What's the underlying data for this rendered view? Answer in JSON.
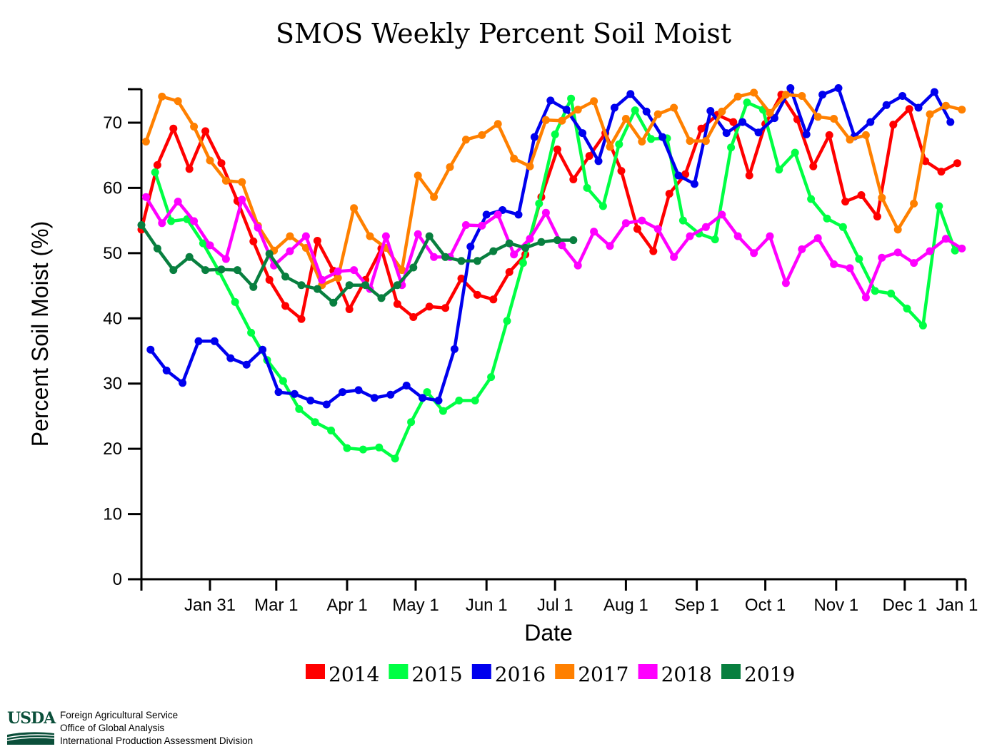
{
  "chart_data": {
    "type": "line",
    "title": "SMOS Weekly Percent Soil Moist",
    "xlabel": "Date",
    "ylabel": "Percent Soil Moist (%)",
    "xlim": [
      1,
      366
    ],
    "ylim": [
      0,
      75
    ],
    "y_ticks": [
      0,
      10,
      20,
      30,
      40,
      50,
      60,
      70
    ],
    "x_ticks": [
      {
        "day": 31,
        "label": "Jan 31"
      },
      {
        "day": 60,
        "label": "Mar 1"
      },
      {
        "day": 91,
        "label": "Apr 1"
      },
      {
        "day": 121,
        "label": "May 1"
      },
      {
        "day": 152,
        "label": "Jun 1"
      },
      {
        "day": 182,
        "label": "Jul 1"
      },
      {
        "day": 213,
        "label": "Aug 1"
      },
      {
        "day": 244,
        "label": "Sep 1"
      },
      {
        "day": 274,
        "label": "Oct 1"
      },
      {
        "day": 305,
        "label": "Nov 1"
      },
      {
        "day": 335,
        "label": "Dec 1"
      },
      {
        "day": 366,
        "label": "Jan 1"
      }
    ],
    "legend_position": "bottom",
    "series": [
      {
        "name": "2014",
        "color": "#ff0000",
        "start_day": 1,
        "values": [
          53.6,
          63.5,
          69.1,
          62.9,
          68.7,
          63.8,
          58.0,
          51.8,
          45.9,
          41.9,
          39.9,
          51.9,
          47.3,
          41.4,
          45.9,
          50.7,
          42.2,
          40.2,
          41.8,
          41.6,
          46.1,
          43.6,
          42.9,
          47.1,
          49.8,
          58.6,
          65.9,
          61.3,
          64.9,
          68.4,
          62.6,
          53.7,
          50.3,
          59.1,
          62.1,
          69.1,
          71.2,
          70.1,
          61.9,
          69.8,
          74.3,
          70.5,
          63.3,
          68.1,
          57.9,
          58.9,
          55.6,
          69.7,
          72.1,
          64.1,
          62.5,
          63.8
        ]
      },
      {
        "name": "2015",
        "color": "#00ff44",
        "start_day": 7,
        "values": [
          62.4,
          54.9,
          55.2,
          51.5,
          47.2,
          42.5,
          37.8,
          33.6,
          30.4,
          26.1,
          24.1,
          22.8,
          20.1,
          19.9,
          20.2,
          18.5,
          24.1,
          28.7,
          25.8,
          27.4,
          27.4,
          31.0,
          39.6,
          48.5,
          57.6,
          68.2,
          73.7,
          60.0,
          57.2,
          66.7,
          71.9,
          67.5,
          67.6,
          55.0,
          53.0,
          52.1,
          66.2,
          73.1,
          72.0,
          62.8,
          65.4,
          58.3,
          55.3,
          54.0,
          49.1,
          44.2,
          43.8,
          41.5,
          38.9,
          57.2,
          50.4
        ]
      },
      {
        "name": "2016",
        "color": "#0000ee",
        "start_day": 5,
        "values": [
          35.2,
          32.0,
          30.1,
          36.5,
          36.5,
          33.9,
          32.9,
          35.2,
          28.7,
          28.4,
          27.4,
          26.8,
          28.7,
          29.0,
          27.8,
          28.3,
          29.7,
          27.8,
          27.4,
          35.3,
          51.0,
          55.9,
          56.6,
          55.9,
          67.8,
          73.4,
          72.0,
          68.4,
          64.1,
          72.3,
          74.4,
          71.7,
          67.8,
          61.9,
          60.6,
          71.8,
          68.4,
          70.1,
          68.5,
          70.7,
          75.3,
          68.2,
          74.3,
          75.3,
          67.9,
          70.1,
          72.7,
          74.1,
          72.3,
          74.7,
          70.1
        ]
      },
      {
        "name": "2017",
        "color": "#ff8000",
        "start_day": 3,
        "values": [
          67.1,
          74.0,
          73.3,
          69.4,
          64.2,
          61.1,
          60.9,
          54.2,
          50.4,
          52.6,
          50.8,
          45.1,
          46.2,
          56.9,
          52.6,
          50.8,
          47.4,
          61.9,
          58.6,
          63.2,
          67.4,
          68.1,
          69.8,
          64.5,
          63.3,
          70.4,
          70.3,
          72.0,
          73.3,
          66.3,
          70.6,
          67.1,
          71.3,
          72.3,
          67.2,
          67.2,
          71.7,
          74.0,
          74.6,
          71.5,
          74.3,
          74.1,
          70.9,
          70.6,
          67.4,
          68.1,
          58.5,
          53.6,
          57.6,
          71.3,
          72.6,
          72.0
        ]
      },
      {
        "name": "2018",
        "color": "#ff00ff",
        "start_day": 3,
        "values": [
          58.6,
          54.6,
          57.9,
          54.9,
          51.2,
          49.1,
          58.2,
          53.9,
          48.1,
          50.3,
          52.6,
          45.9,
          47.2,
          47.4,
          44.5,
          52.6,
          45.1,
          52.9,
          49.4,
          49.4,
          54.3,
          54.2,
          55.9,
          49.8,
          52.2,
          56.2,
          51.2,
          48.1,
          53.3,
          51.1,
          54.6,
          55.0,
          53.7,
          49.4,
          52.6,
          54.0,
          55.9,
          52.6,
          50.0,
          52.6,
          45.4,
          50.6,
          52.3,
          48.3,
          47.7,
          43.2,
          49.3,
          50.1,
          48.5,
          50.3,
          52.2,
          50.7
        ]
      },
      {
        "name": "2019",
        "color": "#087f3f",
        "start_day": 1,
        "values": [
          54.3,
          50.7,
          47.4,
          49.4,
          47.4,
          47.5,
          47.4,
          44.8,
          49.9,
          46.4,
          45.1,
          44.5,
          42.4,
          45.1,
          45.1,
          43.1,
          45.1,
          47.8,
          52.6,
          49.4,
          48.8,
          48.8,
          50.3,
          51.5,
          50.8,
          51.7,
          52.0,
          52.0
        ]
      }
    ]
  },
  "footer": {
    "logo_text": "USDA",
    "org_line_1": "Foreign Agricultural Service",
    "org_line_2": "Office of Global Analysis",
    "org_line_3": "International Production Assessment Division"
  }
}
